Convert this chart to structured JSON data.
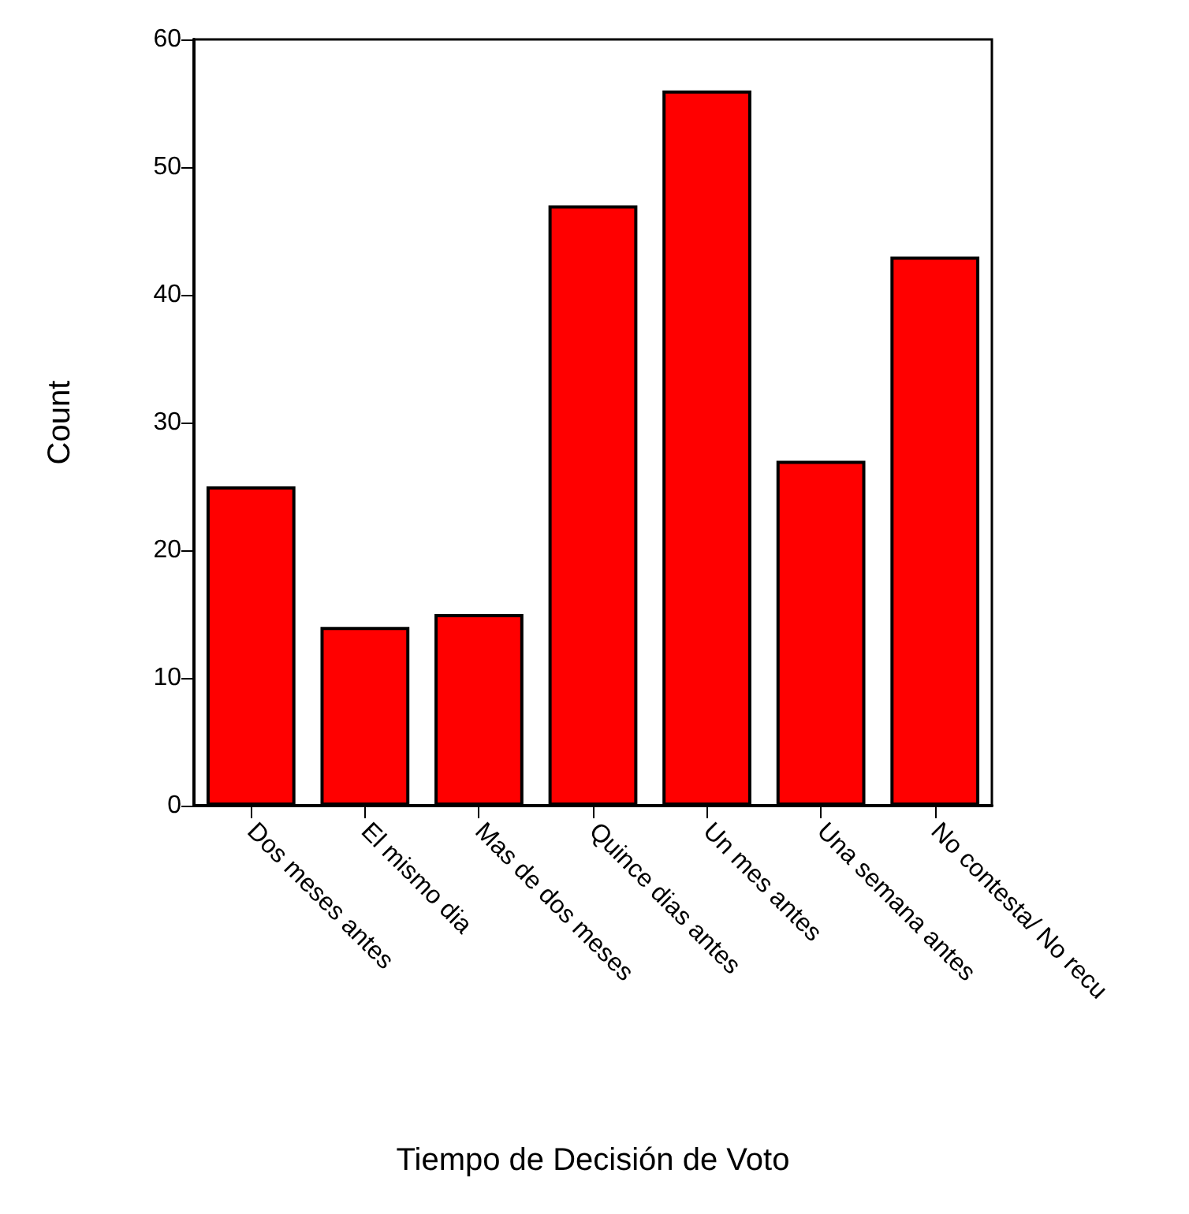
{
  "chart_data": {
    "type": "bar",
    "xlabel": "Tiempo de Decisión de Voto",
    "ylabel": "Count",
    "categories": [
      "Dos meses antes",
      "El mismo dia",
      "Mas de dos meses",
      "Quince dias antes",
      "Un mes antes",
      "Una semana antes",
      "No contesta/ No recu"
    ],
    "values": [
      25,
      14,
      15,
      47,
      56,
      27,
      43
    ],
    "color": "#ff0000",
    "ylim": [
      0,
      60
    ],
    "yticks": [
      0,
      10,
      20,
      30,
      40,
      50,
      60
    ],
    "grid": false
  }
}
